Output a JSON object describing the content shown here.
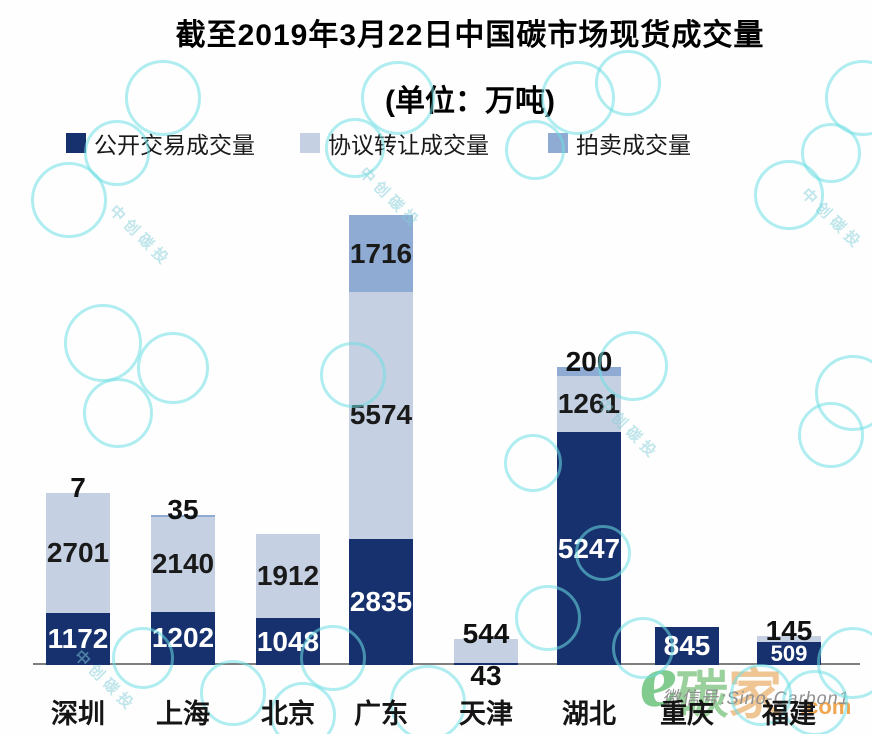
{
  "title": {
    "line1": "截至2019年3月22日中国碳市场现货成交量",
    "line2": "(单位：万吨)"
  },
  "chart_data": {
    "type": "bar",
    "stacked": true,
    "unit": "万吨",
    "title": "截至2019年3月22日中国碳市场现货成交量(单位：万吨)",
    "categories": [
      "深圳",
      "上海",
      "北京",
      "广东",
      "天津",
      "湖北",
      "重庆",
      "福建"
    ],
    "series": [
      {
        "name": "公开交易成交量",
        "color": "#16316e",
        "label_color": "#ffffff",
        "values": [
          1172,
          1202,
          1048,
          2835,
          43,
          5247,
          845,
          509
        ],
        "label_pos": [
          "inside",
          "inside",
          "inside",
          "inside",
          "below",
          "inside",
          "inside",
          "inside"
        ]
      },
      {
        "name": "协议转让成交量",
        "color": "#c5d1e2",
        "label_color": "#1a1a1a",
        "values": [
          2701,
          2140,
          1912,
          5574,
          544,
          1261,
          0,
          145
        ],
        "label_pos": [
          "inside",
          "inside",
          "inside",
          "inside",
          "above",
          "inside",
          null,
          "above"
        ]
      },
      {
        "name": "拍卖成交量",
        "color": "#8fabd3",
        "label_color": "#1a1a1a",
        "values": [
          7,
          35,
          0,
          1716,
          0,
          200,
          0,
          0
        ],
        "label_pos": [
          "above",
          "above",
          null,
          "inside",
          null,
          "above",
          null,
          null
        ]
      }
    ],
    "legend_position": "top",
    "y_axis": "hidden",
    "baseline_color": "#7f7f7f"
  },
  "watermark": {
    "wechat_id": "微信号:Sino-Carbon1",
    "diagonal_text": "中创碳投",
    "logo": {
      "script_char": "e",
      "char_green": "碳",
      "char_orange": "家",
      "suffix": ".com"
    }
  }
}
